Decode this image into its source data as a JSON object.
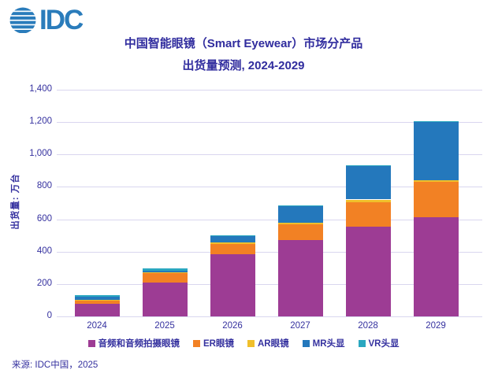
{
  "logo": {
    "text": "IDC"
  },
  "header": {
    "title_line1": "中国智能眼镜（Smart Eyewear）市场分产品",
    "title_line2": "出货量预测, 2024-2029"
  },
  "footer": {
    "source": "来源: IDC中国，2025"
  },
  "colors": {
    "logo_blue": "#2a7cbb",
    "text_indigo": "#35319f",
    "gridline": "#d9d6ef",
    "audio_purple": "#9d3c94",
    "er_orange": "#f28124",
    "ar_yellow": "#f0bf2b",
    "mr_blue": "#2478bc",
    "vr_cyan": "#2aa7c0"
  },
  "chart_data": {
    "type": "bar",
    "stacked": true,
    "title": "中国智能眼镜（Smart Eyewear）市场分产品出货量预测, 2024-2029",
    "xlabel": "",
    "ylabel": "出货量: 万台",
    "categories": [
      "2024",
      "2025",
      "2026",
      "2027",
      "2028",
      "2029"
    ],
    "series": [
      {
        "name": "音频和音频拍摄眼镜",
        "color": "#9d3c94",
        "values": [
          80,
          210,
          385,
          470,
          555,
          615
        ]
      },
      {
        "name": "ER眼镜",
        "color": "#f28124",
        "values": [
          22,
          58,
          62,
          100,
          150,
          215
        ]
      },
      {
        "name": "AR眼镜",
        "color": "#f0bf2b",
        "values": [
          2,
          3,
          8,
          10,
          17,
          13
        ]
      },
      {
        "name": "MR头显",
        "color": "#2478bc",
        "values": [
          17,
          12,
          40,
          103,
          210,
          360
        ]
      },
      {
        "name": "VR头显",
        "color": "#2aa7c0",
        "values": [
          10,
          12,
          4,
          3,
          3,
          3
        ]
      }
    ],
    "totals": [
      131,
      295,
      499,
      686,
      935,
      1206
    ],
    "ylim": [
      0,
      1400
    ],
    "ytick_step": 200,
    "ytick_labels": [
      "0",
      "200",
      "400",
      "600",
      "800",
      "1,000",
      "1,200",
      "1,400"
    ],
    "grid": true,
    "legend_position": "bottom"
  }
}
